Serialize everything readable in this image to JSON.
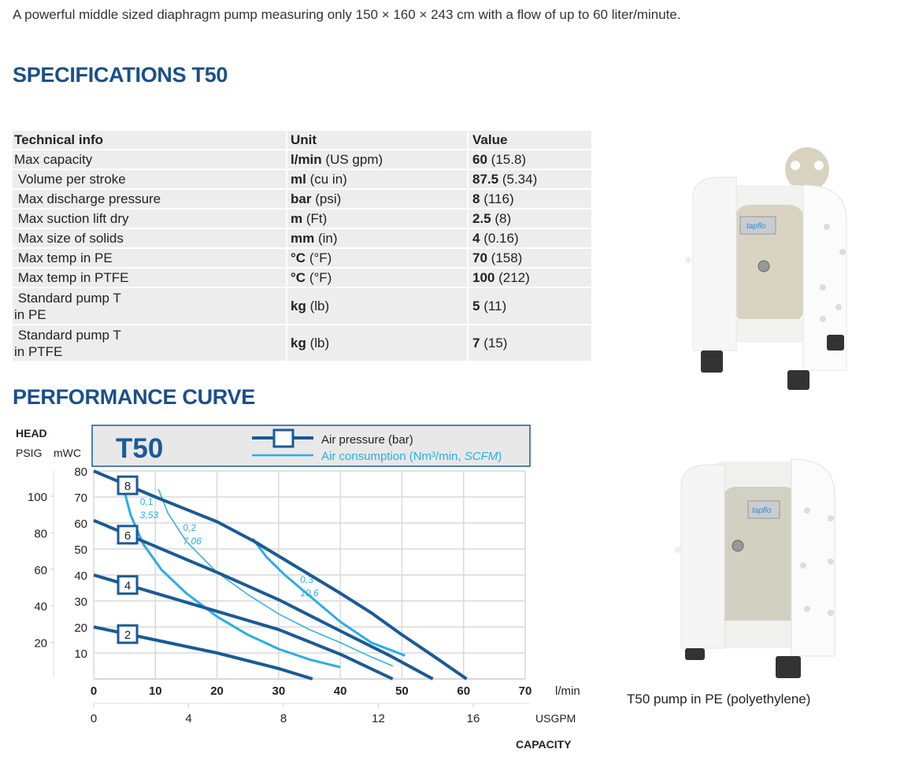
{
  "intro": "A powerful middle sized diaphragm pump measuring only 150 × 160 × 243 cm with a flow of up to 60 liter/minute.",
  "spec_title": "SPECIFICATIONS T50",
  "perf_title": "PERFORMANCE CURVE",
  "table": {
    "headers": [
      "Technical info",
      "Unit",
      "Value"
    ],
    "rows": [
      {
        "info": "Max capacity",
        "unit_b": "l/min",
        "unit": "(US gpm)",
        "val_b": "60",
        "val": "(15.8)"
      },
      {
        "info": " Volume per stroke",
        "unit_b": "ml",
        "unit": "(cu in)",
        "val_b": "87.5",
        "val": "(5.34)"
      },
      {
        "info": " Max discharge pressure",
        "unit_b": "bar",
        "unit": "(psi)",
        "val_b": "8",
        "val": "(116)"
      },
      {
        "info": " Max suction lift dry",
        "unit_b": "m",
        "unit": "(Ft)",
        "val_b": "2.5",
        "val": "(8)"
      },
      {
        "info": " Max size of solids",
        "unit_b": "mm",
        "unit": "(in)",
        "val_b": "4",
        "val": "(0.16)"
      },
      {
        "info": " Max temp in PE",
        "unit_b": "°C",
        "unit": "(°F)",
        "val_b": "70",
        "val": "(158)"
      },
      {
        "info": " Max temp in PTFE",
        "unit_b": "°C",
        "unit": "(°F)",
        "val_b": "100",
        "val": "(212)"
      },
      {
        "info": " Standard pump T",
        "info2": "in PE",
        "unit_b": "kg",
        "unit": "(lb)",
        "val_b": "5",
        "val": "(11)"
      },
      {
        "info": " Standard pump T",
        "info2": "in PTFE",
        "unit_b": "kg",
        "unit": "(lb)",
        "val_b": "7",
        "val": "(15)"
      }
    ]
  },
  "caption": "T50 pump in PE (polyethylene)",
  "colors": {
    "title": "#1b4f8a",
    "pressure": "#1a5a96",
    "air": "#2aaee6",
    "grid": "#d9d9d9",
    "legend_bg": "#e8e8e8"
  },
  "chart_data": {
    "type": "line",
    "title": "T50",
    "head_label": "HEAD",
    "ylabel_left": "PSIG",
    "ylabel": "mWC",
    "xlabel": "l/min",
    "x2label": "USGPM",
    "capacity_label": "CAPACITY",
    "xlim": [
      0,
      70
    ],
    "ylim": [
      0,
      80
    ],
    "x_ticks": [
      0,
      10,
      20,
      30,
      40,
      50,
      60,
      70
    ],
    "y_ticks": [
      10,
      20,
      30,
      40,
      50,
      60,
      70,
      80
    ],
    "psig_ticks": [
      20,
      40,
      60,
      80,
      100
    ],
    "usgpm_ticks": [
      0,
      4,
      8,
      12,
      16
    ],
    "grid": true,
    "legend": [
      {
        "label": "Air pressure (bar)",
        "style": "pressure"
      },
      {
        "label": "Air consumption (Nm³/min, ",
        "label_italic": "SCFM",
        "label_end": ")",
        "style": "air"
      }
    ],
    "pressure_series": [
      {
        "name": "8",
        "points": [
          [
            0,
            80
          ],
          [
            10,
            70
          ],
          [
            20,
            60.5
          ],
          [
            26,
            53
          ],
          [
            33,
            43
          ],
          [
            40,
            33
          ],
          [
            45,
            25.5
          ],
          [
            50,
            17
          ],
          [
            55,
            9
          ],
          [
            60.5,
            0
          ]
        ]
      },
      {
        "name": "6",
        "points": [
          [
            0,
            61
          ],
          [
            10,
            51
          ],
          [
            20,
            41
          ],
          [
            30,
            30.5
          ],
          [
            40,
            18.5
          ],
          [
            48,
            9
          ],
          [
            55,
            0
          ]
        ]
      },
      {
        "name": "4",
        "points": [
          [
            0,
            40
          ],
          [
            10,
            33
          ],
          [
            20,
            26
          ],
          [
            30,
            19
          ],
          [
            40,
            9.5
          ],
          [
            48.5,
            0
          ]
        ]
      },
      {
        "name": "2",
        "points": [
          [
            0,
            20
          ],
          [
            10,
            15
          ],
          [
            20,
            10
          ],
          [
            30,
            4
          ],
          [
            35.5,
            0
          ]
        ]
      }
    ],
    "air_series": [
      {
        "name": "0,1",
        "scfm": "3,53",
        "width": 3,
        "label_at": [
          7.5,
          67
        ],
        "points": [
          [
            5,
            72
          ],
          [
            6,
            63
          ],
          [
            8,
            52
          ],
          [
            11,
            42
          ],
          [
            15,
            33
          ],
          [
            20,
            24
          ],
          [
            25,
            17
          ],
          [
            30,
            11.5
          ],
          [
            35,
            7.5
          ],
          [
            40,
            4.5
          ]
        ]
      },
      {
        "name": "0,2",
        "scfm": "7,06",
        "width": 1.5,
        "label_at": [
          14.5,
          57
        ],
        "points": [
          [
            10.5,
            73
          ],
          [
            12,
            64
          ],
          [
            15,
            53
          ],
          [
            20,
            41
          ],
          [
            25,
            32.5
          ],
          [
            30,
            25
          ],
          [
            35,
            19
          ],
          [
            40,
            14
          ],
          [
            45,
            8.5
          ],
          [
            48.5,
            5
          ]
        ]
      },
      {
        "name": "0,3",
        "scfm": "10,6",
        "width": 3,
        "label_at": [
          33.5,
          37
        ],
        "points": [
          [
            25.8,
            54
          ],
          [
            28,
            47
          ],
          [
            31,
            40
          ],
          [
            35,
            32
          ],
          [
            40,
            22
          ],
          [
            45,
            14
          ],
          [
            50.5,
            9
          ]
        ]
      }
    ]
  }
}
